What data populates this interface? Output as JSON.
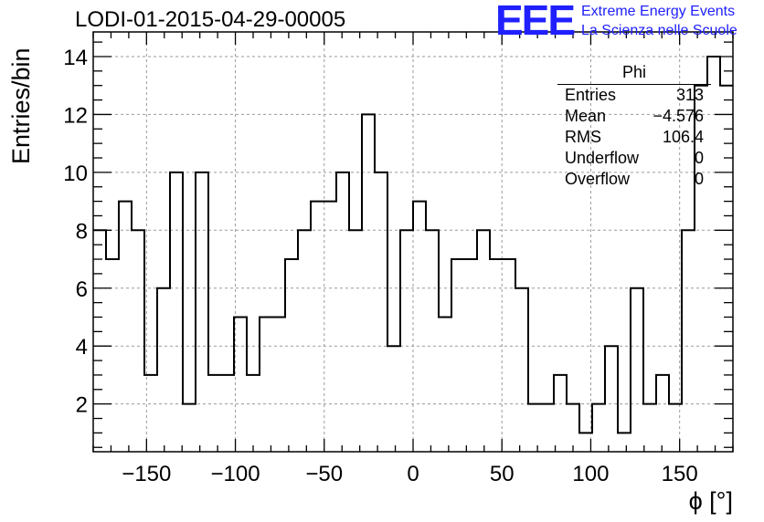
{
  "header": {
    "title": "LODI-01-2015-04-29-00005",
    "logo_text": "EEE",
    "logo_line1": "Extreme Energy Events",
    "logo_line2": "La Scienza nelle Scuole"
  },
  "stats_box": {
    "name": "Phi",
    "rows": [
      {
        "label": "Entries",
        "value": "313"
      },
      {
        "label": "Mean",
        "value": "−4.576"
      },
      {
        "label": "RMS",
        "value": "106.4"
      },
      {
        "label": "Underflow",
        "value": "0"
      },
      {
        "label": "Overflow",
        "value": "0"
      }
    ]
  },
  "chart_data": {
    "type": "bar",
    "style": "step-histogram",
    "xlabel": "ϕ [°]",
    "ylabel": "Entries/bin",
    "xlim": [
      -180,
      180
    ],
    "ylim": [
      0.35,
      14.85
    ],
    "grid": true,
    "bin_edges_start": -180,
    "bin_width": 7.2,
    "values": [
      8,
      7,
      9,
      8,
      3,
      6,
      10,
      2,
      10,
      3,
      3,
      5,
      3,
      5,
      5,
      7,
      8,
      9,
      9,
      10,
      8,
      12,
      10,
      4,
      8,
      9,
      8,
      5,
      7,
      7,
      8,
      7,
      7,
      6,
      2,
      2,
      3,
      2,
      1,
      2,
      4,
      1,
      6,
      2,
      3,
      2,
      8,
      13,
      14,
      13
    ],
    "x_ticks": [
      -150,
      -100,
      -50,
      0,
      50,
      100,
      150
    ],
    "x_tick_labels": [
      "−150",
      "−100",
      "−50",
      "0",
      "50",
      "100",
      "150"
    ],
    "y_ticks": [
      2,
      4,
      6,
      8,
      10,
      12,
      14
    ],
    "y_tick_labels": [
      "2",
      "4",
      "6",
      "8",
      "10",
      "12",
      "14"
    ],
    "line_color": "#000000",
    "grid_color": "#9a9a9a"
  }
}
